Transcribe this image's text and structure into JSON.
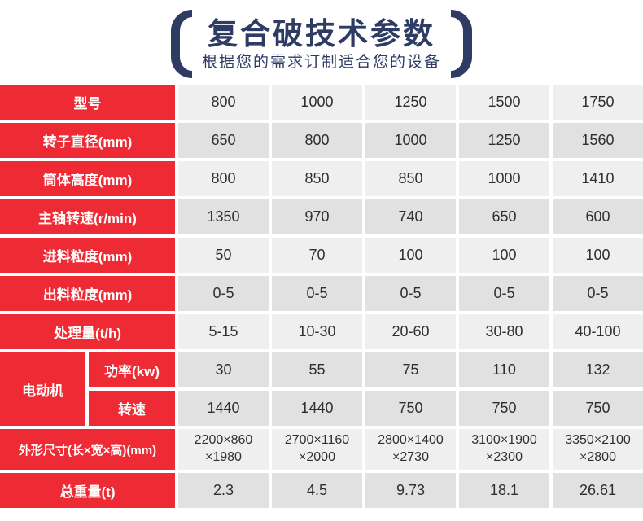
{
  "header": {
    "title": "复合破技术参数",
    "subtitle": "根据您的需求订制适合您的设备"
  },
  "colors": {
    "accent_red": "#ee2a35",
    "navy_title": "#2e3c64",
    "row_light": "#efefef",
    "row_dark": "#e1e1e1"
  },
  "table": {
    "motor_label": "电动机",
    "rows": [
      {
        "label": "型号",
        "values": [
          "800",
          "1000",
          "1250",
          "1500",
          "1750"
        ]
      },
      {
        "label": "转子直径(mm)",
        "values": [
          "650",
          "800",
          "1000",
          "1250",
          "1560"
        ]
      },
      {
        "label": "筒体高度(mm)",
        "values": [
          "800",
          "850",
          "850",
          "1000",
          "1410"
        ]
      },
      {
        "label": "主轴转速(r/min)",
        "values": [
          "1350",
          "970",
          "740",
          "650",
          "600"
        ]
      },
      {
        "label": "进料粒度(mm)",
        "values": [
          "50",
          "70",
          "100",
          "100",
          "100"
        ]
      },
      {
        "label": "出料粒度(mm)",
        "values": [
          "0-5",
          "0-5",
          "0-5",
          "0-5",
          "0-5"
        ]
      },
      {
        "label": "处理量(t/h)",
        "values": [
          "5-15",
          "10-30",
          "20-60",
          "30-80",
          "40-100"
        ]
      },
      {
        "label": "功率(kw)",
        "values": [
          "30",
          "55",
          "75",
          "110",
          "132"
        ]
      },
      {
        "label": "转速",
        "values": [
          "1440",
          "1440",
          "750",
          "750",
          "750"
        ]
      },
      {
        "label": "外形尺寸(长×宽×高)(mm)",
        "values": [
          "2200×860\n×1980",
          "2700×1160\n×2000",
          "2800×1400\n×2730",
          "3100×1900\n×2300",
          "3350×2100\n×2800"
        ]
      },
      {
        "label": "总重量(t)",
        "values": [
          "2.3",
          "4.5",
          "9.73",
          "18.1",
          "26.61"
        ]
      }
    ]
  }
}
